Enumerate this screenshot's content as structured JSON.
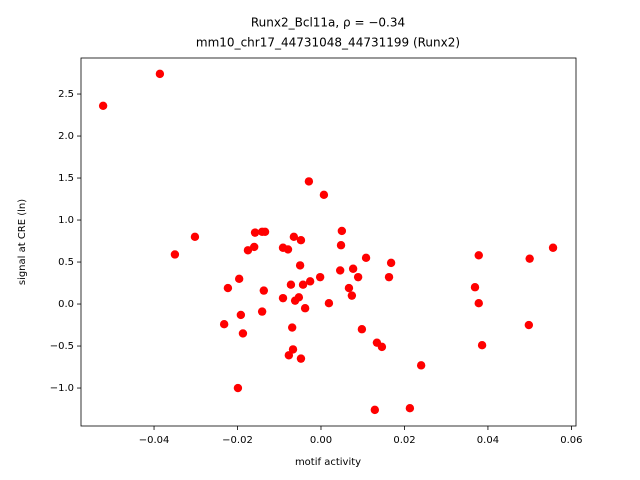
{
  "chart_data": {
    "type": "scatter",
    "title": "Runx2_Bcl11a, ρ = −0.34",
    "subtitle": "mm10_chr17_44731048_44731199 (Runx2)",
    "x_label": "motif activity",
    "y_label": "signal at CRE (ln)",
    "color": "#ff0000",
    "grid": false,
    "xlim": [
      -0.0575,
      0.0611
    ],
    "ylim": [
      -1.452,
      2.929
    ],
    "xticks": [
      {
        "value": -0.04,
        "label": "−0.04"
      },
      {
        "value": -0.02,
        "label": "−0.02"
      },
      {
        "value": 0,
        "label": "0.00"
      },
      {
        "value": 0.02,
        "label": "0.02"
      },
      {
        "value": 0.04,
        "label": "0.04"
      },
      {
        "value": 0.06,
        "label": "0.06"
      }
    ],
    "yticks": [
      {
        "value": -1,
        "label": "−1.0"
      },
      {
        "value": -0.5,
        "label": "−0.5"
      },
      {
        "value": 0,
        "label": "0.0"
      },
      0.5,
      {
        "value": 1,
        "label": "1.0"
      },
      1.5,
      {
        "value": 2,
        "label": "2.0"
      },
      2.5
    ],
    "x": [
      -0.0522,
      -0.0386,
      -0.035,
      -0.0302,
      -0.0232,
      -0.0223,
      -0.0199,
      -0.0196,
      -0.0192,
      -0.0187,
      -0.0175,
      -0.016,
      -0.0158,
      -0.0141,
      -0.0134,
      -0.0137,
      -0.0141,
      -0.0091,
      -0.0091,
      -0.0079,
      -0.0077,
      -0.0072,
      -0.0069,
      -0.0067,
      -0.0065,
      -0.0062,
      -0.0053,
      -0.005,
      -0.0048,
      -0.0048,
      -0.0043,
      -0.0038,
      -0.0029,
      -0.0026,
      -0.0002,
      0.0007,
      0.0019,
      0.0046,
      0.0048,
      0.005,
      0.0067,
      0.0074,
      0.0077,
      0.0089,
      0.0098,
      0.0108,
      0.0129,
      0.0134,
      0.0146,
      0.0163,
      0.0168,
      0.0213,
      0.024,
      0.0369,
      0.0378,
      0.0378,
      0.0386,
      0.0498,
      0.05,
      0.0556
    ],
    "values": [
      2.36,
      2.74,
      0.59,
      0.8,
      -0.24,
      0.19,
      -1.0,
      0.3,
      -0.13,
      -0.35,
      0.64,
      0.68,
      0.85,
      0.86,
      0.86,
      0.16,
      -0.09,
      0.07,
      0.67,
      0.65,
      -0.61,
      0.23,
      -0.28,
      -0.54,
      0.8,
      0.04,
      0.08,
      0.46,
      0.76,
      -0.65,
      0.23,
      -0.05,
      1.46,
      0.27,
      0.32,
      1.3,
      0.01,
      0.4,
      0.7,
      0.87,
      0.19,
      0.1,
      0.42,
      0.32,
      -0.3,
      0.55,
      -1.26,
      -0.46,
      -0.51,
      0.32,
      0.49,
      -1.24,
      -0.73,
      0.2,
      0.58,
      0.01,
      -0.49,
      -0.25,
      0.54,
      0.67
    ]
  }
}
